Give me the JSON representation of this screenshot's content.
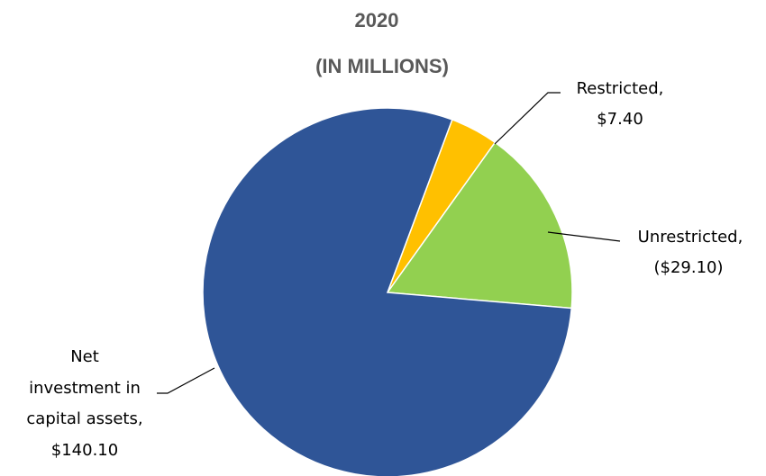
{
  "chart_data": {
    "type": "pie",
    "title": "2020",
    "subtitle": "(IN MILLIONS)",
    "slices": [
      {
        "name": "Restricted,",
        "label": "$7.40",
        "value": 7.4,
        "color": "#ffc000"
      },
      {
        "name": "Unrestricted,",
        "label": "($29.10)",
        "value": 29.1,
        "color": "#92d050"
      },
      {
        "name": "Net investment in capital assets,",
        "label": "$140.10",
        "value": 140.1,
        "color": "#2f5597"
      }
    ],
    "label_lines": {
      "restricted": [
        "Restricted,",
        "$7.40"
      ],
      "unrestricted": [
        "Unrestricted,",
        "($29.10)"
      ],
      "net": [
        "Net",
        "investment in",
        "capital assets,",
        "$140.10"
      ]
    },
    "legend": "none"
  }
}
